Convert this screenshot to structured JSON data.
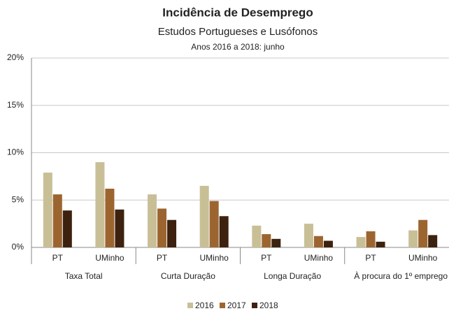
{
  "chart_data": {
    "type": "bar",
    "title": "Incidência de Desemprego",
    "subtitle": "Estudos Portugueses e Lusófonos",
    "note": "Anos 2016 a 2018: junho",
    "categories": [
      "PT",
      "UMinho",
      "PT",
      "UMinho",
      "PT",
      "UMinho",
      "PT",
      "UMinho"
    ],
    "groups": [
      "Taxa Total",
      "Curta Duração",
      "Longa Duração",
      "À procura do 1º emprego"
    ],
    "series": [
      {
        "name": "2016",
        "color": "#c9bf97",
        "values": [
          7.9,
          9.0,
          5.6,
          6.5,
          2.3,
          2.5,
          1.1,
          1.8
        ]
      },
      {
        "name": "2017",
        "color": "#9c6530",
        "values": [
          5.6,
          6.2,
          4.1,
          4.9,
          1.4,
          1.2,
          1.7,
          2.9
        ]
      },
      {
        "name": "2018",
        "color": "#3d2210",
        "values": [
          3.9,
          4.0,
          2.9,
          3.3,
          0.9,
          0.7,
          0.6,
          1.3
        ]
      }
    ],
    "ylim": [
      0,
      20
    ],
    "yticks": [
      {
        "value": 0,
        "label": "0%"
      },
      {
        "value": 5,
        "label": "5%"
      },
      {
        "value": 10,
        "label": "10%"
      },
      {
        "value": 15,
        "label": "15%"
      },
      {
        "value": 20,
        "label": "20%"
      }
    ],
    "grid": true,
    "legend": "bottom"
  }
}
